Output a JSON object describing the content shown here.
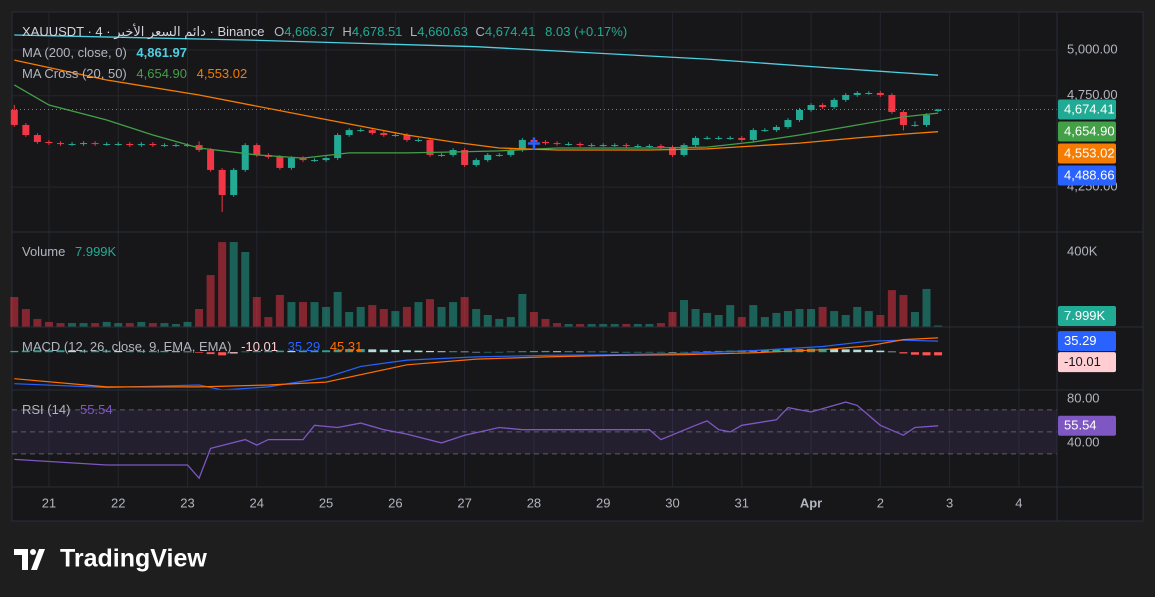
{
  "chart_data": [
    {
      "type": "candlestick",
      "title": "XAUUSDT · 4 · دائم السعر الأخير · Binance",
      "ohlc_legend": [
        {
          "key": "O",
          "value": "4,666.37"
        },
        {
          "key": "H",
          "value": "4,678.51"
        },
        {
          "key": "L",
          "value": "4,660.63"
        },
        {
          "key": "C",
          "value": "4,674.41"
        }
      ],
      "change": "8.03 (+0.17%)",
      "last_label": "4,674.41",
      "crosshair": {
        "value": 4488.66,
        "label": "4,488.66"
      },
      "up_color": "#22ab94",
      "down_color": "#f23645",
      "xlim": [
        -0.2,
        90.3
      ],
      "xticks": [
        {
          "value": 3,
          "label": "21"
        },
        {
          "value": 9,
          "label": "22"
        },
        {
          "value": 15,
          "label": "23"
        },
        {
          "value": 21,
          "label": "24"
        },
        {
          "value": 27,
          "label": "25"
        },
        {
          "value": 33,
          "label": "26"
        },
        {
          "value": 39,
          "label": "27"
        },
        {
          "value": 45,
          "label": "28"
        },
        {
          "value": 51,
          "label": "29"
        },
        {
          "value": 57,
          "label": "30"
        },
        {
          "value": 63,
          "label": "31"
        },
        {
          "value": 69,
          "label": "Apr"
        },
        {
          "value": 75,
          "label": "2"
        },
        {
          "value": 81,
          "label": "3"
        },
        {
          "value": 87,
          "label": "4"
        }
      ],
      "ylim": [
        4004.5,
        5207.9
      ],
      "yticks": [
        {
          "value": 5000,
          "label": "5,000.00"
        },
        {
          "value": 4750,
          "label": "4,750.00"
        },
        {
          "value": 4250,
          "label": "4,250.00"
        }
      ],
      "grid": true,
      "ohlc": [
        [
          4672,
          4700,
          4580,
          4590
        ],
        [
          4590,
          4600,
          4525,
          4535
        ],
        [
          4535,
          4545,
          4487,
          4497
        ],
        [
          4497,
          4507,
          4481,
          4491
        ],
        [
          4491,
          4501,
          4476,
          4486
        ],
        [
          4486,
          4496,
          4476,
          4486
        ],
        [
          4486,
          4501,
          4476,
          4491
        ],
        [
          4491,
          4501,
          4476,
          4486
        ],
        [
          4486,
          4496,
          4476,
          4486
        ],
        [
          4486,
          4496,
          4476,
          4486
        ],
        [
          4486,
          4496,
          4470,
          4480
        ],
        [
          4480,
          4496,
          4470,
          4486
        ],
        [
          4486,
          4496,
          4470,
          4480
        ],
        [
          4480,
          4490,
          4470,
          4480
        ],
        [
          4480,
          4490,
          4470,
          4480
        ],
        [
          4480,
          4490,
          4470,
          4480
        ],
        [
          4480,
          4500,
          4443,
          4453
        ],
        [
          4453,
          4463,
          4334,
          4344
        ],
        [
          4344,
          4354,
          4114,
          4207
        ],
        [
          4207,
          4354,
          4197,
          4344
        ],
        [
          4344,
          4490,
          4334,
          4480
        ],
        [
          4480,
          4490,
          4416,
          4426
        ],
        [
          4426,
          4436,
          4405,
          4415
        ],
        [
          4415,
          4425,
          4345,
          4355
        ],
        [
          4355,
          4419,
          4345,
          4409
        ],
        [
          4409,
          4419,
          4388,
          4398
        ],
        [
          4398,
          4408,
          4388,
          4398
        ],
        [
          4398,
          4419,
          4388,
          4409
        ],
        [
          4409,
          4545,
          4399,
          4535
        ],
        [
          4535,
          4572,
          4525,
          4562
        ],
        [
          4562,
          4572,
          4552,
          4562
        ],
        [
          4562,
          4572,
          4536,
          4546
        ],
        [
          4546,
          4556,
          4525,
          4535
        ],
        [
          4535,
          4545,
          4525,
          4535
        ],
        [
          4535,
          4545,
          4498,
          4508
        ],
        [
          4508,
          4518,
          4498,
          4508
        ],
        [
          4508,
          4518,
          4416,
          4426
        ],
        [
          4426,
          4436,
          4416,
          4426
        ],
        [
          4426,
          4463,
          4416,
          4453
        ],
        [
          4453,
          4463,
          4361,
          4371
        ],
        [
          4371,
          4408,
          4361,
          4398
        ],
        [
          4398,
          4436,
          4388,
          4426
        ],
        [
          4426,
          4436,
          4416,
          4426
        ],
        [
          4426,
          4463,
          4416,
          4453
        ],
        [
          4453,
          4518,
          4443,
          4508
        ],
        [
          4508,
          4518,
          4487,
          4497
        ],
        [
          4497,
          4507,
          4481,
          4491
        ],
        [
          4491,
          4501,
          4476,
          4486
        ],
        [
          4486,
          4496,
          4476,
          4486
        ],
        [
          4486,
          4496,
          4470,
          4480
        ],
        [
          4480,
          4490,
          4470,
          4480
        ],
        [
          4480,
          4490,
          4470,
          4480
        ],
        [
          4480,
          4490,
          4470,
          4480
        ],
        [
          4480,
          4490,
          4465,
          4475
        ],
        [
          4475,
          4485,
          4465,
          4475
        ],
        [
          4475,
          4485,
          4465,
          4475
        ],
        [
          4475,
          4485,
          4459,
          4469
        ],
        [
          4469,
          4479,
          4416,
          4426
        ],
        [
          4426,
          4490,
          4416,
          4480
        ],
        [
          4480,
          4529,
          4470,
          4519
        ],
        [
          4519,
          4529,
          4509,
          4519
        ],
        [
          4519,
          4529,
          4509,
          4519
        ],
        [
          4519,
          4529,
          4509,
          4519
        ],
        [
          4519,
          4529,
          4498,
          4508
        ],
        [
          4508,
          4572,
          4498,
          4562
        ],
        [
          4562,
          4572,
          4552,
          4562
        ],
        [
          4562,
          4589,
          4552,
          4579
        ],
        [
          4579,
          4627,
          4569,
          4617
        ],
        [
          4617,
          4682,
          4607,
          4672
        ],
        [
          4672,
          4709,
          4662,
          4699
        ],
        [
          4699,
          4709,
          4678,
          4688
        ],
        [
          4688,
          4737,
          4678,
          4727
        ],
        [
          4727,
          4764,
          4717,
          4754
        ],
        [
          4754,
          4775,
          4744,
          4765
        ],
        [
          4765,
          4775,
          4755,
          4765
        ],
        [
          4765,
          4775,
          4744,
          4754
        ],
        [
          4754,
          4764,
          4651,
          4661
        ],
        [
          4661,
          4671,
          4560,
          4590
        ],
        [
          4590,
          4610,
          4580,
          4590
        ],
        [
          4590,
          4654,
          4580,
          4644
        ],
        [
          4666.37,
          4678.51,
          4660.63,
          4674.41
        ]
      ],
      "indicators": [
        {
          "name": "MA (200, close, 0)",
          "lines": [
            {
              "color": "#4dd0e1",
              "label": "4,861.97",
              "x": [
                0,
                20,
                40,
                60,
                70,
                80
              ],
              "values": [
                5082,
                5055,
                5018,
                4950,
                4905,
                4861.97
              ]
            }
          ]
        },
        {
          "name": "MA Cross (20, 50)",
          "lines": [
            {
              "color": "#43a047",
              "label": "4,654.90",
              "x": [
                0,
                3,
                8,
                12,
                16,
                21,
                25,
                29,
                34,
                38,
                42,
                47,
                51,
                55,
                60,
                64,
                68,
                73,
                77,
                80
              ],
              "values": [
                4809,
                4699,
                4617,
                4535,
                4464,
                4426,
                4409,
                4437,
                4437,
                4442,
                4448,
                4464,
                4464,
                4464,
                4469,
                4497,
                4535,
                4590,
                4634,
                4654.9
              ]
            },
            {
              "color": "#f57c00",
              "label": "4,553.02",
              "x": [
                0,
                8,
                16,
                25,
                34,
                38,
                42,
                47,
                51,
                55,
                60,
                64,
                68,
                73,
                77,
                80
              ],
              "values": [
                4945,
                4836,
                4754,
                4644,
                4535,
                4497,
                4464,
                4453,
                4453,
                4453,
                4459,
                4475,
                4491,
                4519,
                4540,
                4553.02
              ]
            }
          ]
        }
      ]
    },
    {
      "type": "volume",
      "title": "Volume",
      "value_label": "7.999K",
      "ylim": [
        0,
        506700
      ],
      "yticks": [
        {
          "value": 400000,
          "label": "400K"
        }
      ],
      "values": [
        160000,
        96000,
        43000,
        27000,
        21000,
        21000,
        21000,
        21000,
        27000,
        21000,
        21000,
        27000,
        21000,
        21000,
        16000,
        27000,
        96000,
        277000,
        453000,
        453000,
        400000,
        160000,
        53000,
        171000,
        133000,
        133000,
        133000,
        107000,
        187000,
        80000,
        107000,
        117000,
        96000,
        85000,
        107000,
        133000,
        149000,
        107000,
        133000,
        160000,
        96000,
        64000,
        43000,
        53000,
        176000,
        80000,
        43000,
        21000,
        16000,
        16000,
        16000,
        16000,
        16000,
        16000,
        16000,
        16000,
        21000,
        80000,
        144000,
        96000,
        75000,
        64000,
        117000,
        53000,
        117000,
        53000,
        75000,
        85000,
        96000,
        96000,
        107000,
        85000,
        64000,
        107000,
        85000,
        64000,
        197000,
        171000,
        80000,
        203000,
        7999
      ]
    },
    {
      "type": "macd",
      "title": "MACD (12, 26, close, 9, EMA, EMA)",
      "ylim": [
        -120,
        80
      ],
      "histogram_label": "-10.01",
      "histogram_colors": [
        "#26a69a",
        "#b2dfdb",
        "#ffcdd2",
        "#ff5252"
      ],
      "histogram": [
        4,
        5,
        6,
        6,
        6,
        5,
        5,
        5,
        5,
        4,
        4,
        4,
        4,
        4,
        3,
        2,
        -2,
        -6,
        -10,
        -4,
        2,
        4,
        5,
        5,
        4,
        5,
        5,
        6,
        8,
        10,
        10,
        9,
        8,
        7,
        6,
        5,
        4,
        3,
        3,
        2,
        1,
        1,
        1,
        2,
        3,
        4,
        4,
        3,
        3,
        2,
        2,
        2,
        1,
        1,
        1,
        1,
        1,
        0,
        1,
        2,
        3,
        4,
        5,
        6,
        7,
        8,
        9,
        10,
        10,
        11,
        11,
        10,
        9,
        8,
        7,
        5,
        2,
        -4,
        -8,
        -10,
        -10.01
      ],
      "macd": {
        "color": "#2962ff",
        "label": "35.29",
        "x": [
          0,
          8,
          16,
          18,
          22,
          27,
          30,
          34,
          40,
          46,
          52,
          58,
          64,
          70,
          74,
          77,
          80
        ],
        "values": [
          -100,
          -112,
          -104,
          -120,
          -110,
          -80,
          -45,
          -25,
          -15,
          -10,
          -8,
          -4,
          5,
          18,
          35,
          38,
          35.29
        ]
      },
      "signal": {
        "color": "#ff6d00",
        "label": "45.31",
        "x": [
          0,
          8,
          16,
          22,
          27,
          34,
          40,
          46,
          52,
          58,
          64,
          70,
          74,
          77,
          80
        ],
        "values": [
          -84,
          -110,
          -110,
          -104,
          -95,
          -40,
          -22,
          -15,
          -10,
          -8,
          -2,
          8,
          20,
          40,
          45.31
        ]
      }
    },
    {
      "type": "rsi",
      "title": "RSI (14)",
      "value_label": "55.54",
      "color": "#7e57c2",
      "band_color": "#7e57c2",
      "ylim": [
        0,
        88
      ],
      "yticks": [
        {
          "value": 80,
          "label": "80.00"
        },
        {
          "value": 40,
          "label": "40.00"
        }
      ],
      "levels": [
        70,
        50,
        30
      ],
      "x": [
        0,
        8,
        15,
        16,
        17,
        20,
        21,
        22,
        25,
        26,
        28,
        30,
        32,
        34,
        37,
        39,
        42,
        44,
        51,
        55,
        56,
        59,
        60,
        61,
        62,
        63,
        66,
        67,
        69,
        72,
        73,
        75,
        77,
        78,
        80
      ],
      "values": [
        25,
        20,
        20,
        8,
        35,
        43,
        38,
        43,
        43,
        56,
        54,
        58,
        52,
        48,
        40,
        47,
        54,
        52,
        52,
        52,
        43,
        56,
        60,
        52,
        50,
        56,
        61,
        72,
        68,
        77,
        74,
        56,
        47,
        54,
        55.54
      ]
    }
  ],
  "brand": "TradingView"
}
